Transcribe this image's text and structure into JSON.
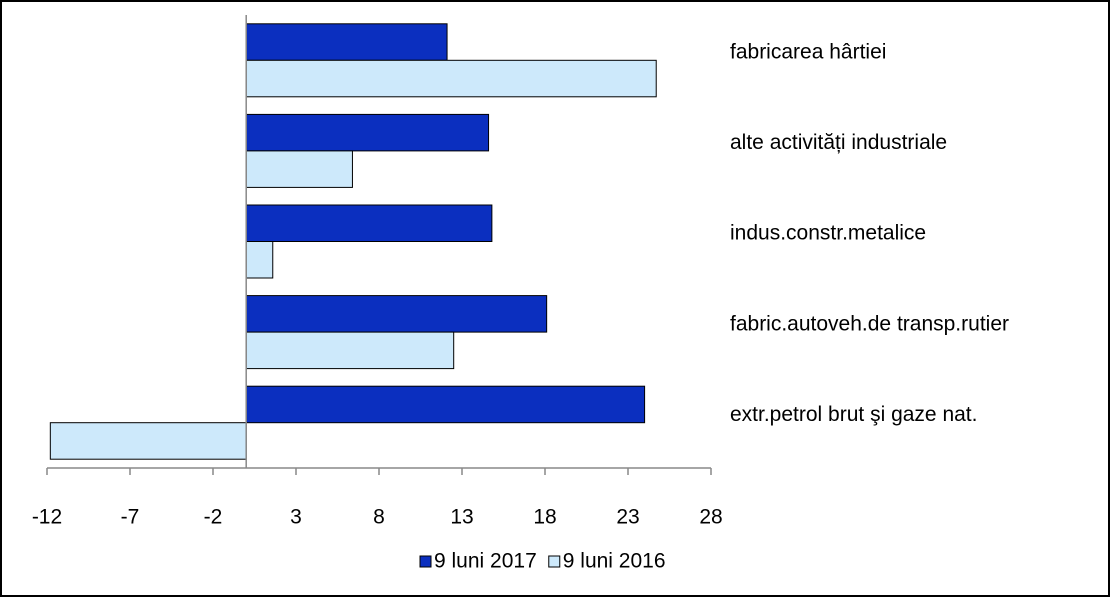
{
  "chart_data": {
    "type": "hbar",
    "categories": [
      "fabricarea hârtiei",
      "alte activități industriale",
      "indus.constr.metalice",
      "fabric.autoveh.de transp.rutier",
      "extr.petrol brut şi gaze nat."
    ],
    "series": [
      {
        "name": "9 luni 2017",
        "color": "#0b2fbf",
        "values": [
          12.1,
          14.6,
          14.8,
          18.1,
          24.0
        ]
      },
      {
        "name": "9 luni 2016",
        "color": "#cde9fb",
        "values": [
          24.7,
          6.4,
          1.6,
          12.5,
          -11.8
        ]
      }
    ],
    "xlim": [
      -12,
      28
    ],
    "xticks": [
      -12,
      -7,
      -2,
      3,
      8,
      13,
      18,
      23,
      28
    ],
    "legend": "bottom"
  }
}
